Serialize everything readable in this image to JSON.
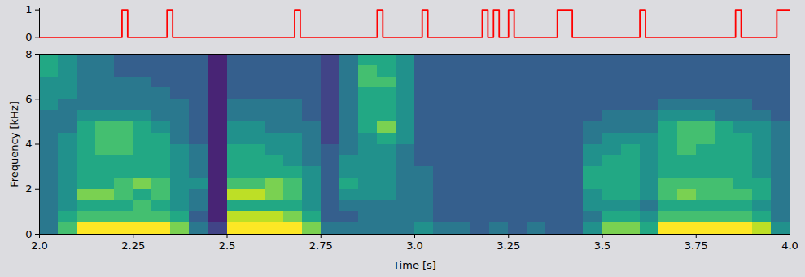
{
  "chart_data": [
    {
      "type": "line",
      "x": [
        2.0,
        2.22,
        2.235,
        2.34,
        2.355,
        2.68,
        2.695,
        2.9,
        2.915,
        3.02,
        3.035,
        3.18,
        3.195,
        3.21,
        3.225,
        3.25,
        3.265,
        3.38,
        3.42,
        3.6,
        3.615,
        3.855,
        3.87,
        3.965,
        4.0
      ],
      "series": [
        {
          "color": "red",
          "line_style": "step",
          "values": [
            0,
            1,
            0,
            1,
            0,
            1,
            0,
            1,
            0,
            1,
            0,
            1,
            0,
            1,
            0,
            1,
            0,
            1,
            0,
            1,
            0,
            1,
            0,
            1,
            1
          ]
        }
      ],
      "xlim": [
        2,
        4
      ],
      "ylim": [
        -0.05,
        1.05
      ],
      "yticks": [
        0,
        1
      ],
      "tick_labels": "y"
    },
    {
      "type": "heatmap",
      "x_label": "Time [s]",
      "y_label": "Frequency [kHz]",
      "xlim": [
        2,
        4
      ],
      "ylim": [
        0,
        8
      ],
      "xticks": [
        {
          "value": 2,
          "label": "2.0"
        },
        2.25,
        2.5,
        2.75,
        {
          "value": 3,
          "label": "3.0"
        },
        3.25,
        3.5,
        3.75,
        {
          "value": 4,
          "label": "4.0"
        }
      ],
      "yticks": [
        0,
        2,
        4,
        6,
        8
      ],
      "color": "viridis",
      "color_range": [
        0,
        10
      ],
      "x_bins": [
        2.0,
        2.05,
        2.1,
        2.15,
        2.2,
        2.25,
        2.3,
        2.35,
        2.4,
        2.45,
        2.5,
        2.55,
        2.6,
        2.65,
        2.7,
        2.75,
        2.8,
        2.85,
        2.9,
        2.95,
        3.0,
        3.05,
        3.1,
        3.15,
        3.2,
        3.25,
        3.3,
        3.35,
        3.4,
        3.45,
        3.5,
        3.55,
        3.6,
        3.65,
        3.7,
        3.75,
        3.8,
        3.85,
        3.9,
        3.95,
        4.0
      ],
      "y_bins": [
        0,
        0.5,
        1,
        1.5,
        2,
        2.5,
        3,
        3.5,
        4,
        4.5,
        5,
        5.5,
        6,
        6.5,
        7,
        7.5,
        8
      ],
      "cells": [
        [
          4,
          4,
          4,
          4,
          4,
          4,
          4,
          4,
          4,
          4,
          4,
          5,
          5,
          5,
          6,
          6
        ],
        [
          7,
          6,
          5,
          5,
          5,
          5,
          5,
          5,
          5,
          4,
          4,
          4,
          5,
          5,
          5,
          5
        ],
        [
          10,
          7,
          6,
          8,
          6,
          6,
          6,
          6,
          6,
          6,
          5,
          4,
          4,
          4,
          4,
          4
        ],
        [
          10,
          7,
          6,
          8,
          6,
          6,
          6,
          7,
          7,
          7,
          5,
          4,
          4,
          4,
          4,
          4
        ],
        [
          10,
          7,
          6,
          7,
          7,
          6,
          6,
          7,
          7,
          7,
          5,
          4,
          4,
          4,
          3,
          3
        ],
        [
          10,
          7,
          7,
          6,
          8,
          6,
          6,
          6,
          6,
          6,
          5,
          4,
          4,
          4,
          3,
          3
        ],
        [
          10,
          7,
          6,
          7,
          7,
          6,
          6,
          6,
          6,
          5,
          4,
          4,
          4,
          3,
          3,
          3
        ],
        [
          8,
          6,
          5,
          5,
          5,
          5,
          5,
          5,
          4,
          4,
          4,
          4,
          3,
          3,
          3,
          3
        ],
        [
          4,
          3,
          4,
          4,
          5,
          4,
          4,
          4,
          3,
          3,
          3,
          3,
          3,
          3,
          3,
          3
        ],
        [
          2,
          1,
          1,
          1,
          1,
          1,
          1,
          1,
          1,
          1,
          1,
          1,
          1,
          1,
          1,
          1
        ],
        [
          10,
          9,
          6,
          9,
          7,
          6,
          6,
          6,
          5,
          5,
          4,
          4,
          3,
          3,
          3,
          3
        ],
        [
          10,
          9,
          6,
          9,
          7,
          6,
          6,
          6,
          5,
          5,
          4,
          4,
          3,
          3,
          3,
          3
        ],
        [
          10,
          9,
          6,
          8,
          8,
          6,
          6,
          5,
          5,
          4,
          4,
          4,
          3,
          3,
          3,
          3
        ],
        [
          10,
          8,
          6,
          7,
          7,
          6,
          5,
          5,
          5,
          4,
          4,
          4,
          3,
          3,
          3,
          3
        ],
        [
          8,
          6,
          5,
          5,
          5,
          5,
          4,
          4,
          4,
          4,
          3,
          3,
          3,
          3,
          3,
          3
        ],
        [
          4,
          3,
          3,
          3,
          3,
          3,
          3,
          3,
          2,
          2,
          2,
          2,
          2,
          2,
          2,
          2
        ],
        [
          4,
          3,
          4,
          5,
          6,
          5,
          5,
          4,
          4,
          4,
          4,
          4,
          4,
          4,
          4,
          4
        ],
        [
          4,
          4,
          4,
          5,
          5,
          5,
          5,
          5,
          5,
          6,
          6,
          6,
          6,
          7,
          7,
          6
        ],
        [
          4,
          4,
          4,
          5,
          5,
          5,
          5,
          5,
          6,
          8,
          6,
          6,
          6,
          7,
          6,
          6
        ],
        [
          4,
          4,
          4,
          4,
          4,
          4,
          4,
          4,
          5,
          5,
          5,
          5,
          5,
          5,
          5,
          5
        ],
        [
          5,
          4,
          4,
          4,
          4,
          4,
          3,
          3,
          3,
          3,
          3,
          3,
          3,
          3,
          3,
          3
        ],
        [
          4,
          3,
          3,
          3,
          3,
          3,
          3,
          3,
          3,
          3,
          3,
          3,
          3,
          3,
          3,
          3
        ],
        [
          4,
          3,
          3,
          3,
          3,
          3,
          3,
          3,
          3,
          3,
          3,
          3,
          3,
          3,
          3,
          3
        ],
        [
          3,
          3,
          3,
          3,
          3,
          3,
          3,
          3,
          3,
          3,
          3,
          3,
          3,
          3,
          3,
          3
        ],
        [
          4,
          3,
          3,
          3,
          3,
          3,
          3,
          3,
          3,
          3,
          3,
          3,
          3,
          3,
          3,
          3
        ],
        [
          3,
          3,
          3,
          3,
          3,
          3,
          3,
          3,
          3,
          3,
          3,
          3,
          3,
          3,
          3,
          3
        ],
        [
          4,
          3,
          3,
          3,
          3,
          3,
          3,
          3,
          3,
          3,
          3,
          3,
          3,
          3,
          3,
          3
        ],
        [
          3,
          3,
          3,
          3,
          3,
          3,
          3,
          3,
          3,
          3,
          3,
          3,
          3,
          3,
          3,
          3
        ],
        [
          3,
          3,
          3,
          3,
          3,
          3,
          3,
          3,
          3,
          3,
          3,
          3,
          3,
          3,
          3,
          3
        ],
        [
          5,
          4,
          5,
          5,
          6,
          6,
          5,
          5,
          4,
          4,
          3,
          3,
          3,
          3,
          3,
          3
        ],
        [
          8,
          6,
          5,
          6,
          6,
          6,
          6,
          5,
          5,
          4,
          4,
          3,
          3,
          3,
          3,
          3
        ],
        [
          8,
          6,
          5,
          6,
          6,
          6,
          6,
          6,
          5,
          4,
          4,
          3,
          3,
          3,
          3,
          3
        ],
        [
          6,
          5,
          4,
          5,
          5,
          5,
          5,
          5,
          5,
          4,
          4,
          3,
          3,
          3,
          3,
          3
        ],
        [
          10,
          7,
          6,
          7,
          7,
          6,
          6,
          6,
          6,
          6,
          5,
          4,
          3,
          3,
          3,
          3
        ],
        [
          10,
          7,
          6,
          8,
          7,
          6,
          6,
          7,
          7,
          7,
          5,
          4,
          3,
          3,
          3,
          3
        ],
        [
          10,
          7,
          6,
          7,
          7,
          6,
          6,
          6,
          7,
          7,
          5,
          4,
          3,
          3,
          3,
          3
        ],
        [
          10,
          7,
          6,
          7,
          7,
          6,
          6,
          6,
          6,
          6,
          4,
          4,
          3,
          3,
          3,
          3
        ],
        [
          10,
          7,
          6,
          7,
          6,
          6,
          6,
          6,
          6,
          5,
          4,
          4,
          3,
          3,
          3,
          3
        ],
        [
          9,
          6,
          5,
          6,
          6,
          5,
          5,
          5,
          5,
          5,
          4,
          3,
          3,
          3,
          3,
          3
        ],
        [
          5,
          4,
          4,
          4,
          4,
          4,
          4,
          4,
          4,
          4,
          3,
          3,
          3,
          3,
          3,
          3
        ]
      ]
    }
  ]
}
